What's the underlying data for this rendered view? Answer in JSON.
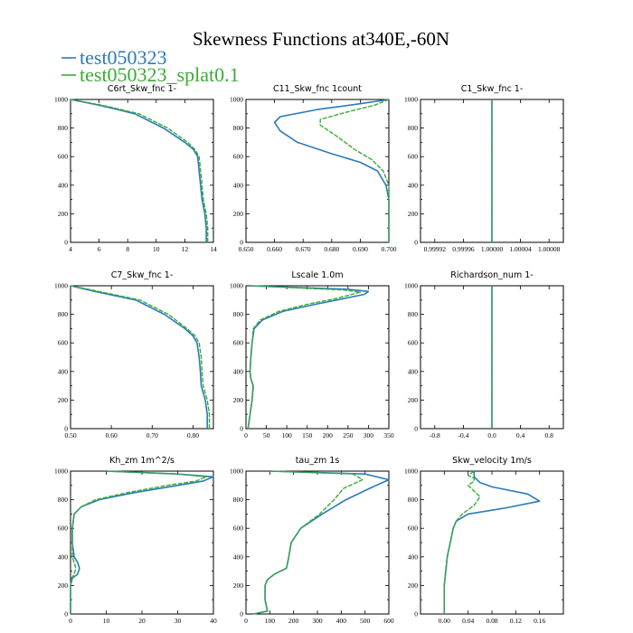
{
  "title": "Skewness Functions at340E,-60N",
  "colors": {
    "series1": "#2b7bb9",
    "series2": "#3aaa35"
  },
  "legend": [
    {
      "name": "test050323",
      "color": "#2b7bb9"
    },
    {
      "name": "test050323_splat0.1",
      "color": "#3aaa35"
    }
  ],
  "chart_data": [
    {
      "type": "line",
      "title": "C6rt_Skw_fnc   1-",
      "xlim": [
        4,
        14
      ],
      "ylim": [
        1000,
        0
      ],
      "xticks": [
        "4",
        "6",
        "8",
        "10",
        "12",
        "14"
      ],
      "yticks": [
        "0",
        "200",
        "400",
        "600",
        "800",
        "1000"
      ],
      "series": [
        {
          "name": "test050323",
          "x": [
            13.5,
            13.5,
            13.4,
            13.2,
            13.1,
            13.0,
            12.9,
            12.6,
            12.0,
            10.5,
            8.5,
            6.0,
            4.0
          ],
          "y": [
            0,
            100,
            200,
            300,
            400,
            500,
            600,
            650,
            700,
            800,
            900,
            960,
            1000
          ]
        },
        {
          "name": "test050323_splat0.1",
          "x": [
            13.6,
            13.6,
            13.5,
            13.3,
            13.2,
            13.1,
            13.0,
            12.7,
            12.2,
            10.8,
            8.8,
            6.2,
            4.0
          ],
          "y": [
            0,
            100,
            200,
            300,
            400,
            500,
            600,
            650,
            700,
            800,
            900,
            960,
            1000
          ]
        }
      ]
    },
    {
      "type": "line",
      "title": "C11_Skw_fnc    1count",
      "xlim": [
        0.65,
        0.7
      ],
      "ylim": [
        1000,
        0
      ],
      "xticks": [
        "0.650",
        "0.660",
        "0.670",
        "0.680",
        "0.690",
        "0.700"
      ],
      "yticks": [
        "0",
        "200",
        "400",
        "600",
        "800",
        "1000"
      ],
      "series": [
        {
          "name": "test050323",
          "x": [
            0.7,
            0.7,
            0.7,
            0.7,
            0.699,
            0.696,
            0.69,
            0.68,
            0.668,
            0.662,
            0.66,
            0.662,
            0.675,
            0.69,
            0.7
          ],
          "y": [
            0,
            100,
            200,
            300,
            400,
            500,
            560,
            620,
            700,
            780,
            840,
            880,
            930,
            970,
            1000
          ]
        },
        {
          "name": "test050323_splat0.1",
          "x": [
            0.7,
            0.7,
            0.7,
            0.7,
            0.7,
            0.698,
            0.694,
            0.688,
            0.682,
            0.676,
            0.676,
            0.685,
            0.695,
            0.7
          ],
          "y": [
            0,
            100,
            200,
            300,
            400,
            500,
            580,
            650,
            740,
            820,
            860,
            910,
            960,
            1000
          ]
        }
      ]
    },
    {
      "type": "line",
      "title": "C1_Skw_fnc   1-",
      "xlim": [
        0.9999,
        1.0001
      ],
      "ylim": [
        1000,
        0
      ],
      "xticks": [
        "0.99992",
        "0.99996",
        "1.00000",
        "1.00004",
        "1.00008"
      ],
      "yticks": [
        "0",
        "200",
        "400",
        "600",
        "800",
        "1000"
      ],
      "series": [
        {
          "name": "test050323",
          "x": [
            1.0,
            1.0
          ],
          "y": [
            0,
            1000
          ]
        },
        {
          "name": "test050323_splat0.1",
          "x": [
            1.0,
            1.0
          ],
          "y": [
            0,
            1000
          ]
        }
      ]
    },
    {
      "type": "line",
      "title": "C7_Skw_fnc   1-",
      "xlim": [
        0.5,
        0.85
      ],
      "ylim": [
        1000,
        0
      ],
      "xticks": [
        "0.50",
        "0.60",
        "0.70",
        "0.80"
      ],
      "yticks": [
        "0",
        "200",
        "400",
        "600",
        "800",
        "1000"
      ],
      "series": [
        {
          "name": "test050323",
          "x": [
            0.835,
            0.835,
            0.83,
            0.82,
            0.818,
            0.815,
            0.81,
            0.8,
            0.78,
            0.73,
            0.66,
            0.56,
            0.5
          ],
          "y": [
            0,
            100,
            200,
            300,
            400,
            500,
            600,
            650,
            700,
            800,
            900,
            960,
            1000
          ]
        },
        {
          "name": "test050323_splat0.1",
          "x": [
            0.84,
            0.84,
            0.835,
            0.825,
            0.822,
            0.82,
            0.815,
            0.805,
            0.785,
            0.74,
            0.67,
            0.57,
            0.5
          ],
          "y": [
            0,
            100,
            200,
            300,
            400,
            500,
            600,
            650,
            700,
            800,
            900,
            960,
            1000
          ]
        }
      ]
    },
    {
      "type": "line",
      "title": "Lscale   1.0m",
      "xlim": [
        0,
        350
      ],
      "ylim": [
        1000,
        0
      ],
      "xticks": [
        "0",
        "50",
        "100",
        "150",
        "200",
        "250",
        "300",
        "350"
      ],
      "yticks": [
        "0",
        "200",
        "400",
        "600",
        "800",
        "1000"
      ],
      "series": [
        {
          "name": "test050323",
          "x": [
            5,
            10,
            15,
            18,
            12,
            10,
            12,
            15,
            20,
            40,
            90,
            170,
            240,
            290,
            300,
            250,
            100,
            10
          ],
          "y": [
            0,
            100,
            200,
            300,
            350,
            400,
            500,
            600,
            700,
            760,
            820,
            870,
            910,
            940,
            960,
            975,
            990,
            1000
          ]
        },
        {
          "name": "test050323_splat0.1",
          "x": [
            5,
            10,
            15,
            17,
            12,
            10,
            12,
            15,
            18,
            35,
            80,
            150,
            220,
            260,
            280,
            240,
            90,
            10
          ],
          "y": [
            0,
            100,
            200,
            300,
            350,
            400,
            500,
            600,
            700,
            760,
            820,
            870,
            910,
            940,
            955,
            970,
            990,
            1000
          ]
        }
      ]
    },
    {
      "type": "line",
      "title": "Richardson_num   1-",
      "xlim": [
        -1.0,
        1.0
      ],
      "ylim": [
        1000,
        0
      ],
      "xticks": [
        "-0.8",
        "-0.4",
        "0.0",
        "0.4",
        "0.8"
      ],
      "yticks": [
        "0",
        "200",
        "400",
        "600",
        "800",
        "1000"
      ],
      "series": [
        {
          "name": "test050323",
          "x": [
            0,
            0
          ],
          "y": [
            0,
            1000
          ]
        },
        {
          "name": "test050323_splat0.1",
          "x": [
            0,
            0
          ],
          "y": [
            0,
            1000
          ]
        }
      ]
    },
    {
      "type": "line",
      "title": "Kh_zm   1m^2/s",
      "xlim": [
        0,
        40
      ],
      "ylim": [
        1000,
        0
      ],
      "xticks": [
        "0",
        "10",
        "20",
        "30",
        "40"
      ],
      "yticks": [
        "0",
        "200",
        "400",
        "600",
        "800",
        "1000"
      ],
      "series": [
        {
          "name": "test050323",
          "x": [
            0,
            0,
            0,
            0.5,
            2,
            2.5,
            2,
            1,
            0.5,
            0.5,
            1,
            3,
            8,
            18,
            30,
            37,
            40,
            30,
            10
          ],
          "y": [
            0,
            100,
            200,
            250,
            280,
            320,
            360,
            400,
            500,
            600,
            700,
            750,
            800,
            850,
            900,
            930,
            960,
            980,
            1000
          ]
        },
        {
          "name": "test050323_splat0.1",
          "x": [
            0,
            0,
            0,
            0.3,
            1,
            1.5,
            1,
            0.5,
            0.5,
            0.5,
            1,
            3,
            7,
            16,
            27,
            35,
            38,
            30,
            10
          ],
          "y": [
            0,
            100,
            200,
            250,
            280,
            320,
            360,
            400,
            500,
            600,
            700,
            750,
            800,
            850,
            900,
            930,
            960,
            980,
            1000
          ]
        }
      ]
    },
    {
      "type": "line",
      "title": "tau_zm   1s",
      "xlim": [
        0,
        600
      ],
      "ylim": [
        1000,
        0
      ],
      "xticks": [
        "0",
        "100",
        "200",
        "300",
        "400",
        "500",
        "600"
      ],
      "yticks": [
        "0",
        "200",
        "400",
        "600",
        "800",
        "1000"
      ],
      "series": [
        {
          "name": "test050323",
          "x": [
            30,
            90,
            80,
            80,
            90,
            120,
            170,
            180,
            190,
            230,
            320,
            420,
            520,
            600,
            500,
            100
          ],
          "y": [
            0,
            20,
            100,
            200,
            240,
            280,
            320,
            400,
            500,
            600,
            700,
            800,
            880,
            940,
            980,
            1000
          ]
        },
        {
          "name": "test050323_splat0.1",
          "x": [
            30,
            90,
            80,
            80,
            90,
            120,
            170,
            180,
            190,
            230,
            310,
            370,
            410,
            490,
            450,
            100
          ],
          "y": [
            0,
            20,
            100,
            200,
            240,
            280,
            320,
            400,
            500,
            600,
            700,
            800,
            880,
            940,
            980,
            1000
          ]
        }
      ]
    },
    {
      "type": "line",
      "title": "Skw_velocity   1m/s",
      "xlim": [
        -0.04,
        0.2
      ],
      "ylim": [
        1000,
        0
      ],
      "xticks": [
        "0.00",
        "0.04",
        "0.08",
        "0.12",
        "0.16"
      ],
      "yticks": [
        "0",
        "200",
        "400",
        "600",
        "800",
        "1000"
      ],
      "series": [
        {
          "name": "test050323",
          "x": [
            0.0,
            0.0,
            0.005,
            0.01,
            0.015,
            0.02,
            0.04,
            0.1,
            0.16,
            0.14,
            0.08,
            0.06,
            0.055,
            0.05,
            0.05,
            0.05
          ],
          "y": [
            0,
            200,
            400,
            500,
            600,
            650,
            700,
            740,
            790,
            840,
            890,
            920,
            940,
            960,
            980,
            1000
          ]
        },
        {
          "name": "test050323_splat0.1",
          "x": [
            0.0,
            0.0,
            0.005,
            0.01,
            0.015,
            0.02,
            0.03,
            0.05,
            0.06,
            0.05,
            0.04,
            0.05,
            0.05,
            0.04,
            0.05
          ],
          "y": [
            0,
            200,
            400,
            500,
            600,
            650,
            700,
            760,
            820,
            860,
            900,
            930,
            950,
            970,
            1000
          ]
        }
      ]
    }
  ]
}
